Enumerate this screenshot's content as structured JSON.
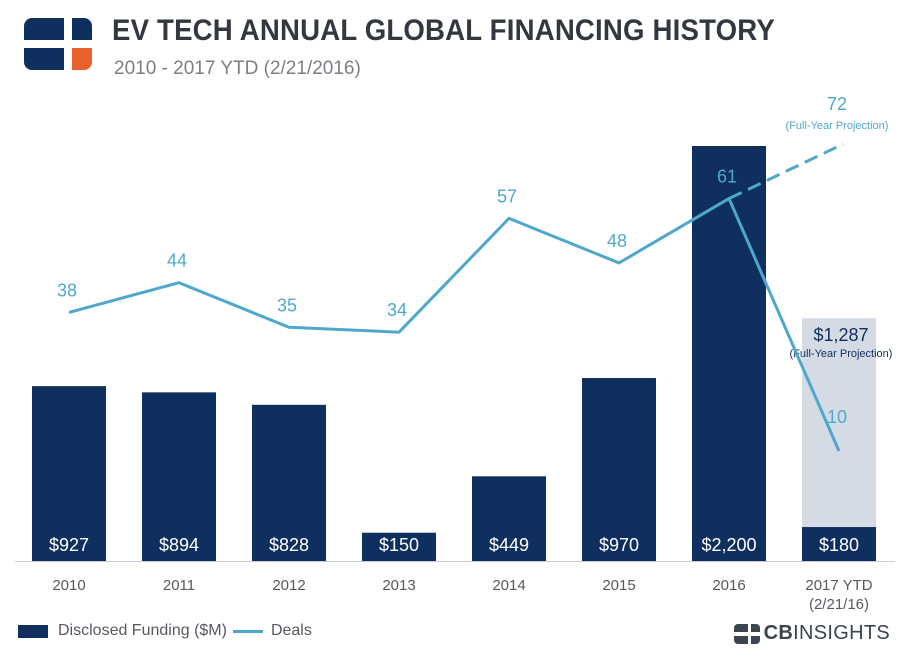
{
  "header": {
    "title": "EV TECH ANNUAL GLOBAL FINANCING HISTORY",
    "subtitle": "2010 - 2017 YTD (2/21/2016)"
  },
  "legend": {
    "funding_label": "Disclosed Funding ($M)",
    "deals_label": "Deals"
  },
  "brand": {
    "bold": "CB",
    "light": "INSIGHTS"
  },
  "colors": {
    "bar": "#0f2f5e",
    "projection_bar": "#d5dbe4",
    "line": "#4fa8cc",
    "axis_text": "#555a60",
    "logo_blue": "#0f2f5e",
    "logo_orange": "#e8612c"
  },
  "chart_data": {
    "type": "bar",
    "categories": [
      "2010",
      "2011",
      "2012",
      "2013",
      "2014",
      "2015",
      "2016",
      "2017 YTD\n(2/21/16)"
    ],
    "series": [
      {
        "name": "Disclosed Funding ($M)",
        "kind": "bar",
        "values": [
          927,
          894,
          828,
          150,
          449,
          970,
          2200,
          180
        ],
        "labels": [
          "$927",
          "$894",
          "$828",
          "$150",
          "$449",
          "$970",
          "$2,200",
          "$180"
        ]
      },
      {
        "name": "Deals",
        "kind": "line",
        "values": [
          38,
          44,
          35,
          34,
          57,
          48,
          61,
          10
        ],
        "labels": [
          "38",
          "44",
          "35",
          "34",
          "57",
          "48",
          "61",
          "10"
        ]
      }
    ],
    "projections": {
      "funding": {
        "value": 1287,
        "label": "$1,287",
        "note": "(Full-Year Projection)"
      },
      "deals": {
        "value": 72,
        "label": "72",
        "note": "(Full-Year Projection)"
      }
    },
    "funding_range": [
      0,
      2200
    ],
    "deals_range": [
      0,
      72
    ]
  }
}
